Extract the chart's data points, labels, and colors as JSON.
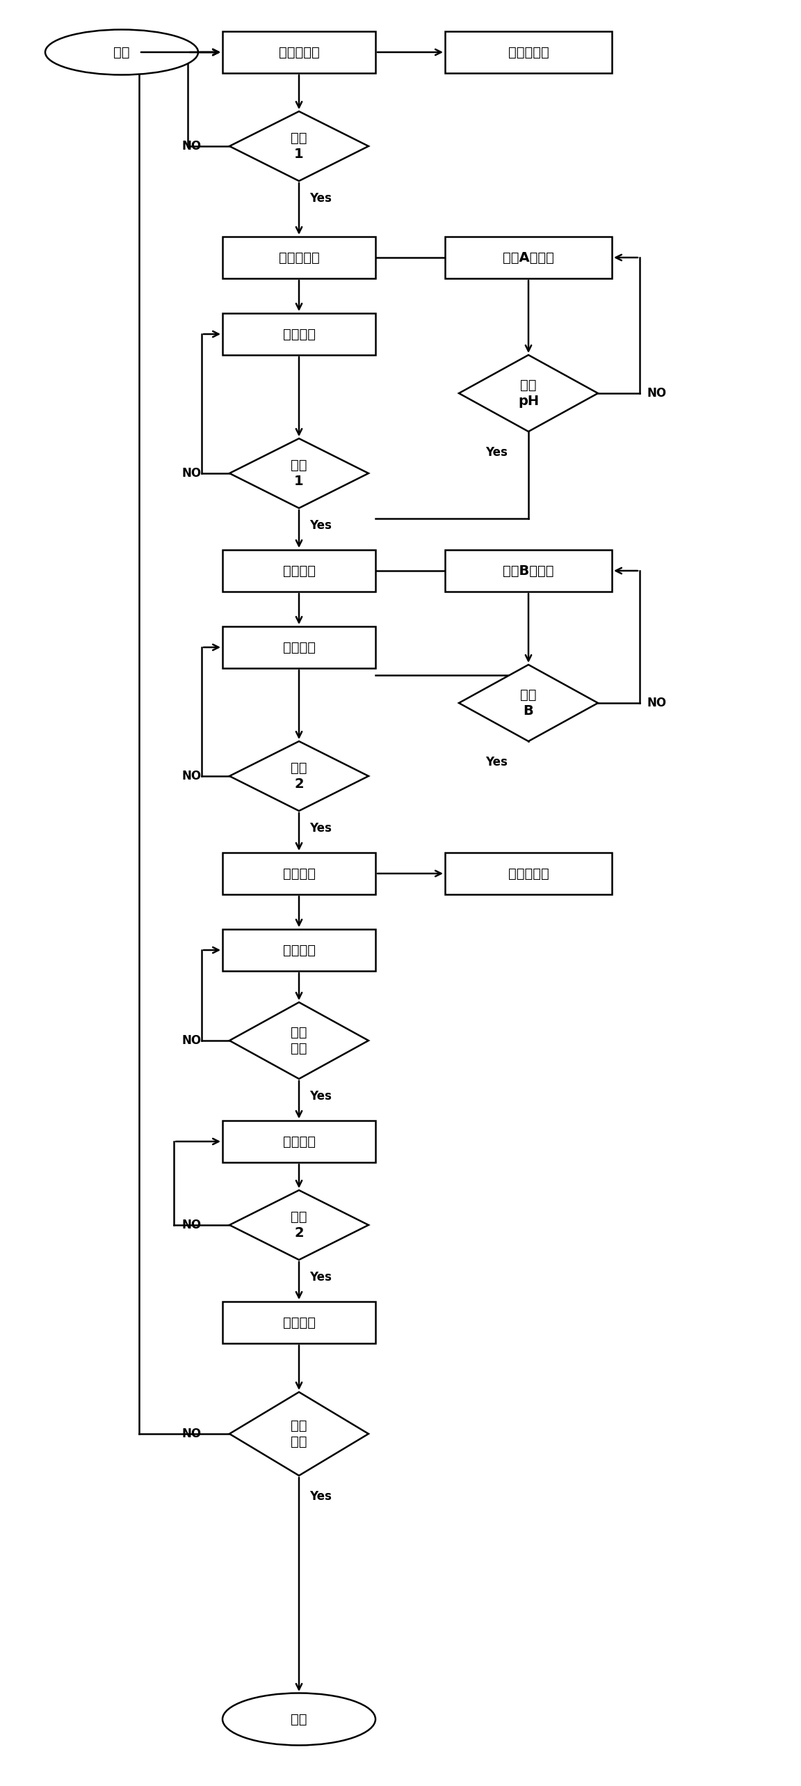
{
  "bg_color": "#ffffff",
  "line_color": "#000000",
  "figsize": [
    11.52,
    25.66
  ],
  "dpi": 100,
  "nodes": {
    "start": {
      "type": "oval",
      "label": "开始"
    },
    "jin_qi": {
      "type": "rect",
      "label": "进泥泵启动"
    },
    "jiao_qi": {
      "type": "rect",
      "label": "搅拌器启动"
    },
    "yewei1": {
      "type": "diamond",
      "label": "液位\n1"
    },
    "jin_stop": {
      "type": "rect",
      "label": "进泥泵停止"
    },
    "shiji_A": {
      "type": "rect",
      "label": "试剂A计量泵"
    },
    "wei_qi": {
      "type": "rect",
      "label": "微波启动"
    },
    "mubiao_ph": {
      "type": "diamond",
      "label": "目标\npH"
    },
    "wendu1": {
      "type": "diamond",
      "label": "温度\n1"
    },
    "wei_pause": {
      "type": "rect",
      "label": "微波暂停"
    },
    "shiji_B": {
      "type": "rect",
      "label": "试剂B计量泵"
    },
    "wei_qi2": {
      "type": "rect",
      "label": "微波启动"
    },
    "jiB": {
      "type": "diamond",
      "label": "剂量\nB"
    },
    "wendu2": {
      "type": "diamond",
      "label": "温度\n2"
    },
    "wei_stop": {
      "type": "rect",
      "label": "微波停止"
    },
    "jiao_stop": {
      "type": "rect",
      "label": "搅拌器停止"
    },
    "bao_wen": {
      "type": "rect",
      "label": "保温延时"
    },
    "mubiao_t": {
      "type": "diamond",
      "label": "目标\n时间"
    },
    "pai_qi": {
      "type": "rect",
      "label": "排泥启动"
    },
    "yewei2": {
      "type": "diamond",
      "label": "液位\n2"
    },
    "pai_stop": {
      "type": "rect",
      "label": "排泥停止"
    },
    "xunhuan": {
      "type": "diamond",
      "label": "循环\n次数"
    },
    "end": {
      "type": "oval",
      "label": "结束"
    }
  },
  "yes_label": "Yes",
  "no_label": "NO",
  "font_size": 14,
  "font_size_small": 12
}
